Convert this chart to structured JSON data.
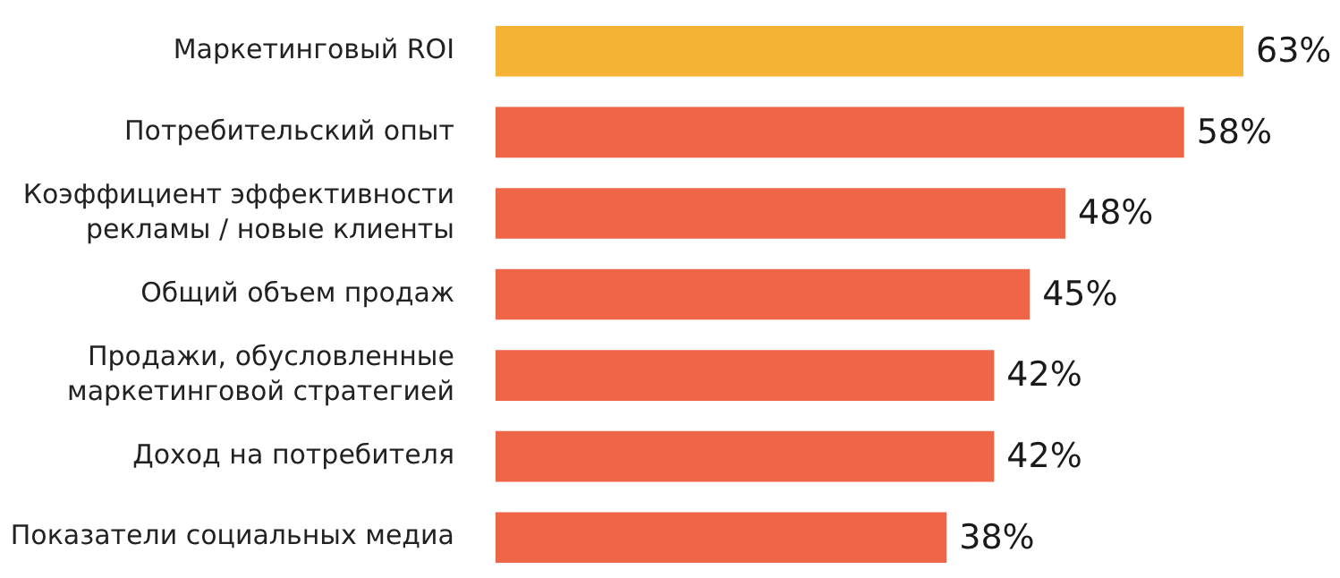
{
  "chart_data": {
    "type": "bar",
    "orientation": "horizontal",
    "categories": [
      "Маркетинговый ROI",
      "Потребительский опыт",
      "Коэффициент эффективности рекламы / новые клиенты",
      "Общий объем продаж",
      "Продажи, обусловленные маркетинговой стратегией",
      "Доход на потребителя",
      "Показатели социальных медиа"
    ],
    "values": [
      63,
      58,
      48,
      45,
      42,
      42,
      38
    ],
    "colors": [
      "#f5b335",
      "#ee6548",
      "#ee6548",
      "#ee6548",
      "#ee6548",
      "#ee6548",
      "#ee6548"
    ],
    "value_labels": [
      "63%",
      "58%",
      "48%",
      "45%",
      "42%",
      "42%",
      "38%"
    ]
  }
}
